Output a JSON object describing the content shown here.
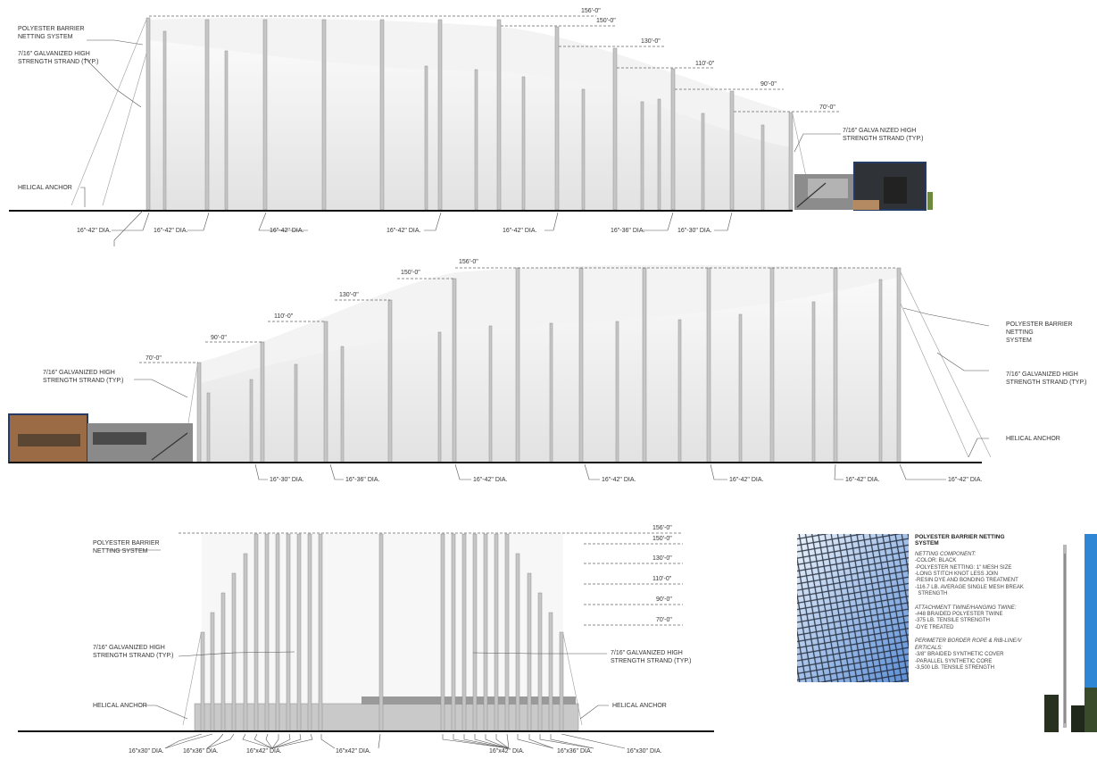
{
  "elevation_top": {
    "heights": [
      "156'-0\"",
      "150'-0\"",
      "130'-0\"",
      "110'-0\"",
      "90'-0\"",
      "70'-0\""
    ],
    "notes": {
      "netting": "POLYESTER BARRIER\nNETTING SYSTEM",
      "strand_left": "7/16\" GALVANIZED HIGH\nSTRENGTH STRAND (TYP.)",
      "strand_right": "7/16\" GALVA NIZED HIGH\nSTRENGTH STRAND (TYP.)",
      "anchor": "HELICAL ANCHOR"
    },
    "diameters": [
      "16\"-42\" DIA.",
      "16\"-42\" DIA.",
      "16\"-42\" DIA.",
      "16\"-42\" DIA.",
      "16\"-42\" DIA.",
      "16\"-36\" DIA.",
      "16\"-30\" DIA."
    ]
  },
  "elevation_middle": {
    "heights": [
      "70'-0\"",
      "90'-0\"",
      "110'-0\"",
      "130'-0\"",
      "150'-0\"",
      "156'-0\""
    ],
    "notes": {
      "netting": "POLYESTER BARRIER NETTING\nSYSTEM",
      "strand_left": "7/16\" GALVANIZED HIGH\nSTRENGTH STRAND (TYP.)",
      "strand_right": "7/16\" GALVANIZED HIGH\nSTRENGTH STRAND (TYP.)",
      "anchor": "HELICAL ANCHOR"
    },
    "diameters": [
      "16\"-30\" DIA.",
      "16\"-36\" DIA.",
      "16\"-42\" DIA.",
      "16\"-42\" DIA.",
      "16\"-42\" DIA.",
      "16\"-42\" DIA.",
      "16\"-42\" DIA."
    ]
  },
  "elevation_bottom": {
    "heights": [
      "156'-0\"",
      "150'-0\"",
      "130'-0\"",
      "110'-0\"",
      "90'-0\"",
      "70'-0\""
    ],
    "notes": {
      "netting": "POLYESTER BARRIER\nNETTING SYSTEM",
      "strand_left": "7/16\" GALVANIZED HIGH\nSTRENGTH STRAND (TYP.)",
      "strand_right": "7/16\" GALVANIZED HIGH\nSTRENGTH STRAND (TYP.)",
      "anchor_left": "HELICAL ANCHOR",
      "anchor_right": "HELICAL ANCHOR"
    },
    "diameters": [
      "16\"x30\" DIA.",
      "16\"x36\" DIA.",
      "16\"x42\" DIA.",
      "16\"x42\" DIA.",
      "16\"x42\" DIA.",
      "16\"x36\" DIA.",
      "16\"x30\" DIA."
    ]
  },
  "specs": {
    "title": "POLYESTER BARRIER NETTING SYSTEM",
    "groups": [
      {
        "heading": "NETTING COMPONENT:",
        "lines": [
          "-COLOR: BLACK",
          "-POLYESTER NETTING: 1\" MESH SIZE",
          "-LONG STITCH KNOT LESS JOIN",
          "-RESIN DYE AND BONDING TREATMENT",
          "-116.7 LB. AVERAGE SINGLE MESH BREAK",
          "  STRENGTH"
        ]
      },
      {
        "heading": "ATTACHMENT TWINE/HANGING TWINE:",
        "lines": [
          "-#48 BRAIDED POLYESTER TWINE",
          "-375 LB. TENSILE STRENGTH",
          "-DYE TREATED"
        ]
      },
      {
        "heading": "PERIMETER BORDER ROPE & RIB-LINE/V\nERTICALS:",
        "lines": [
          "-3/8\" BRAIDED SYNTHETIC COVER",
          "-PARALLEL SYNTHETIC CORE",
          "-3,500 LB. TENSILE STRENGTH"
        ]
      }
    ]
  },
  "colors": {
    "ink": "#333333",
    "pole": "#c4c4c4",
    "net": "#e7e7e7",
    "ground": "#111111"
  }
}
